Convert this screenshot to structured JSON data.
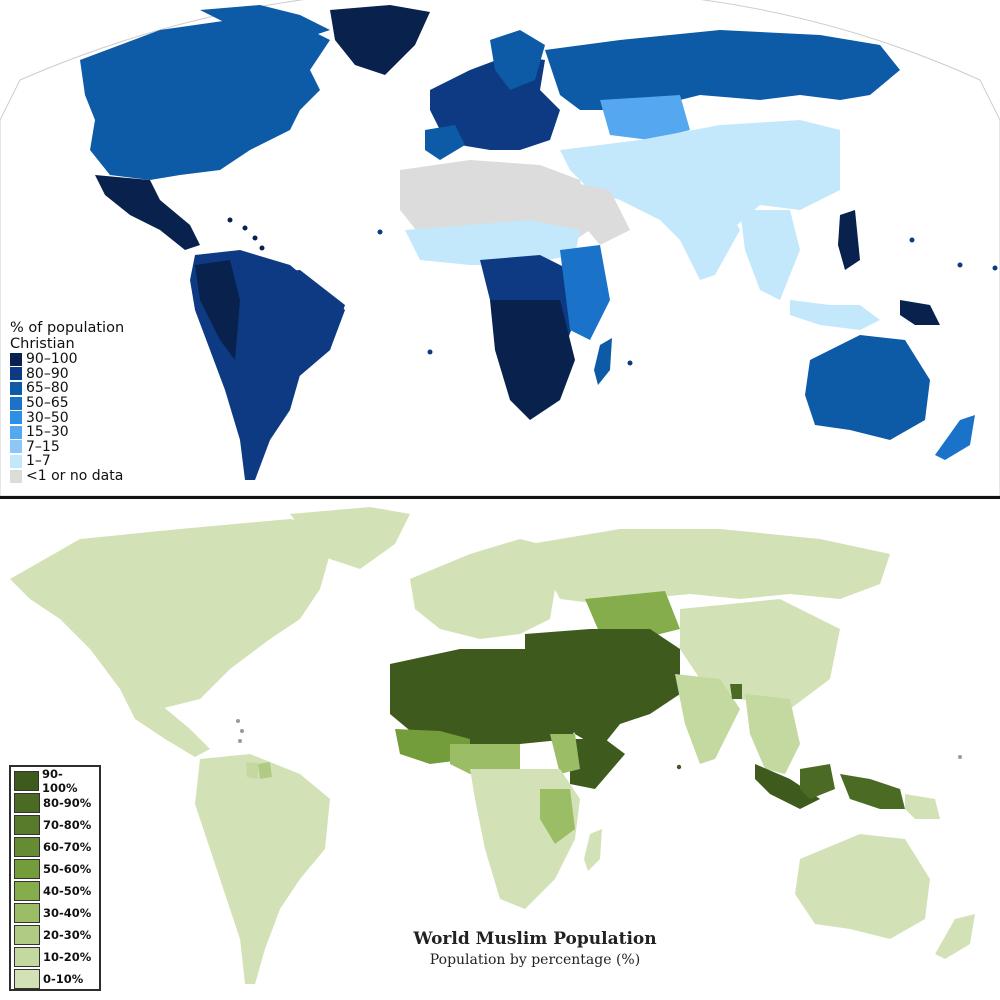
{
  "christian_map": {
    "legend_title_line1": "% of population",
    "legend_title_line2": "Christian",
    "legend": [
      {
        "label": "90–100",
        "color": "#08214d"
      },
      {
        "label": "80–90",
        "color": "#0d3a82"
      },
      {
        "label": "65–80",
        "color": "#0d5aa6"
      },
      {
        "label": "50–65",
        "color": "#1a73c9"
      },
      {
        "label": "30–50",
        "color": "#2e8fe6"
      },
      {
        "label": "15–30",
        "color": "#55a8f0"
      },
      {
        "label": "7–15",
        "color": "#8cc8f7"
      },
      {
        "label": "1–7",
        "color": "#c4e8fb"
      },
      {
        "label": "<1 or no data",
        "color": "#dcdcdc"
      }
    ]
  },
  "muslim_map": {
    "title": "World Muslim Population",
    "subtitle": "Population by percentage (%)",
    "legend": [
      {
        "label": "90-100%",
        "color": "#3e5a1d"
      },
      {
        "label": "80-90%",
        "color": "#4b6b24"
      },
      {
        "label": "70-80%",
        "color": "#577b2b"
      },
      {
        "label": "60-70%",
        "color": "#658c32"
      },
      {
        "label": "50-60%",
        "color": "#739d3a"
      },
      {
        "label": "40-50%",
        "color": "#86ad4c"
      },
      {
        "label": "30-40%",
        "color": "#9bbd66"
      },
      {
        "label": "20-30%",
        "color": "#b0cc84"
      },
      {
        "label": "10-20%",
        "color": "#c3d9a0"
      },
      {
        "label": "0-10%",
        "color": "#d2e2b6"
      }
    ]
  }
}
